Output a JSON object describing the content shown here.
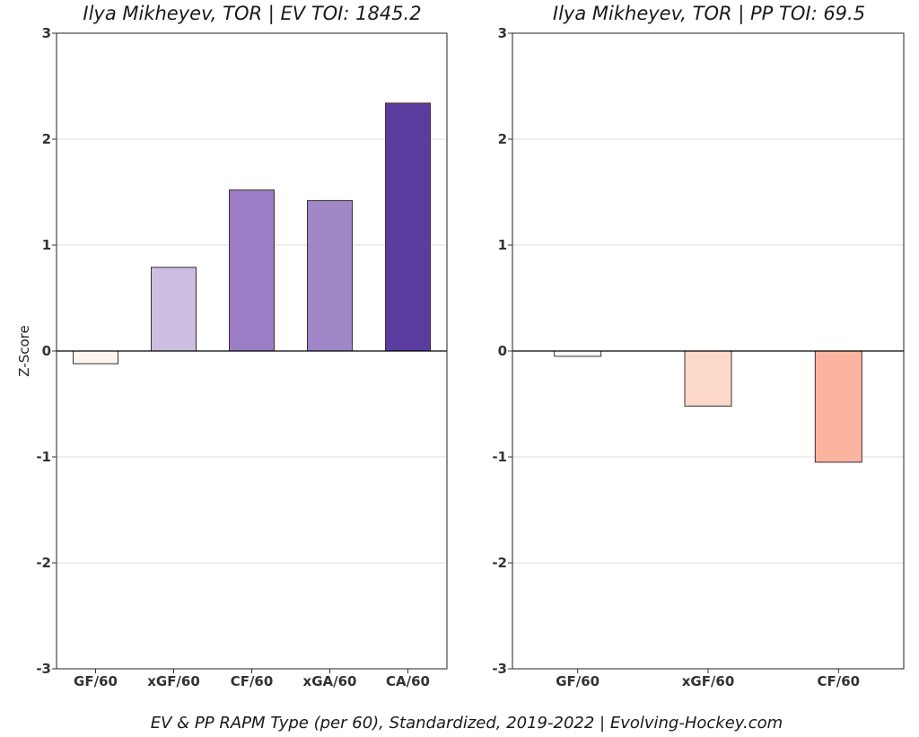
{
  "chart_data": [
    {
      "type": "bar",
      "title": "Ilya Mikheyev, TOR  |  EV TOI: 1845.2",
      "ylabel": "Z-Score",
      "ylim": [
        -3,
        3
      ],
      "yticks": [
        "3",
        "2",
        "1",
        "0",
        "-1",
        "-2",
        "-3"
      ],
      "grid": true,
      "categories": [
        "GF/60",
        "xGF/60",
        "CF/60",
        "xGA/60",
        "CA/60"
      ],
      "values": [
        -0.12,
        0.79,
        1.52,
        1.42,
        2.34
      ],
      "colors": [
        "#fff5f0",
        "#cbbee0",
        "#9a7dc4",
        "#9f87c8",
        "#5b3c9f"
      ]
    },
    {
      "type": "bar",
      "title": "Ilya Mikheyev, TOR  |  PP TOI: 69.5",
      "ylabel": "",
      "ylim": [
        -3,
        3
      ],
      "yticks": [
        "3",
        "2",
        "1",
        "0",
        "-1",
        "-2",
        "-3"
      ],
      "grid": true,
      "categories": [
        "GF/60",
        "xGF/60",
        "CF/60"
      ],
      "values": [
        -0.05,
        -0.52,
        -1.05
      ],
      "colors": [
        "#ffffff",
        "#fdd9cc",
        "#fcb4a0"
      ]
    }
  ],
  "caption": "EV & PP RAPM Type (per 60), Standardized, 2019-2022     |     Evolving-Hockey.com"
}
